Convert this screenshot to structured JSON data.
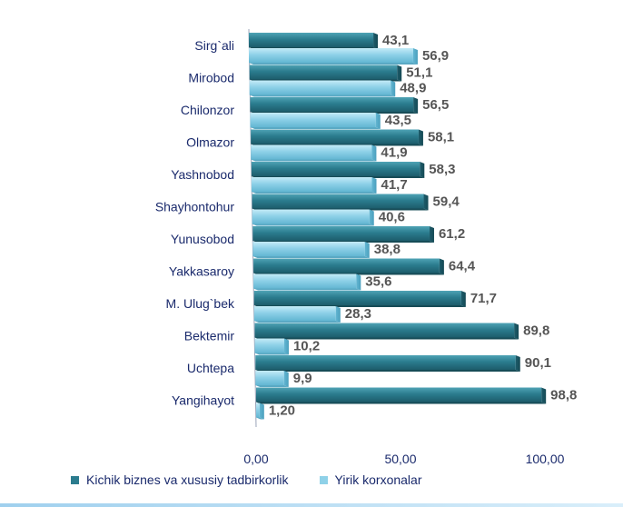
{
  "chart_data": {
    "type": "bar",
    "orientation": "horizontal",
    "categories": [
      "Sirg`ali",
      "Mirobod",
      "Chilonzor",
      "Olmazor",
      "Yashnobod",
      "Shayhontohur",
      "Yunusobod",
      "Yakkasaroy",
      "M. Ulug`bek",
      "Bektemir",
      "Uchtepa",
      "Yangihayot"
    ],
    "series": [
      {
        "name": "Kichik biznes va xususiy tadbirkorlik",
        "values": [
          43.1,
          51.1,
          56.5,
          58.1,
          58.3,
          59.4,
          61.2,
          64.4,
          71.7,
          89.8,
          90.1,
          98.8
        ],
        "labels": [
          "43,1",
          "51,1",
          "56,5",
          "58,1",
          "58,3",
          "59,4",
          "61,2",
          "64,4",
          "71,7",
          "89,8",
          "90,1",
          "98,8"
        ],
        "color": "#2b7c8e"
      },
      {
        "name": "Yirik korxonalar",
        "values": [
          56.9,
          48.9,
          43.5,
          41.9,
          41.7,
          40.6,
          38.8,
          35.6,
          28.3,
          10.2,
          9.9,
          1.2
        ],
        "labels": [
          "56,9",
          "48,9",
          "43,5",
          "41,9",
          "41,7",
          "40,6",
          "38,8",
          "35,6",
          "28,3",
          "10,2",
          "9,9",
          "1,20"
        ],
        "color": "#8fd1e8"
      }
    ],
    "xlim": [
      0,
      100
    ],
    "xticks": [
      0,
      50,
      100
    ],
    "xtick_labels": [
      "0,00",
      "50,00",
      "100,00"
    ],
    "grid": false,
    "legend_position": "bottom"
  }
}
